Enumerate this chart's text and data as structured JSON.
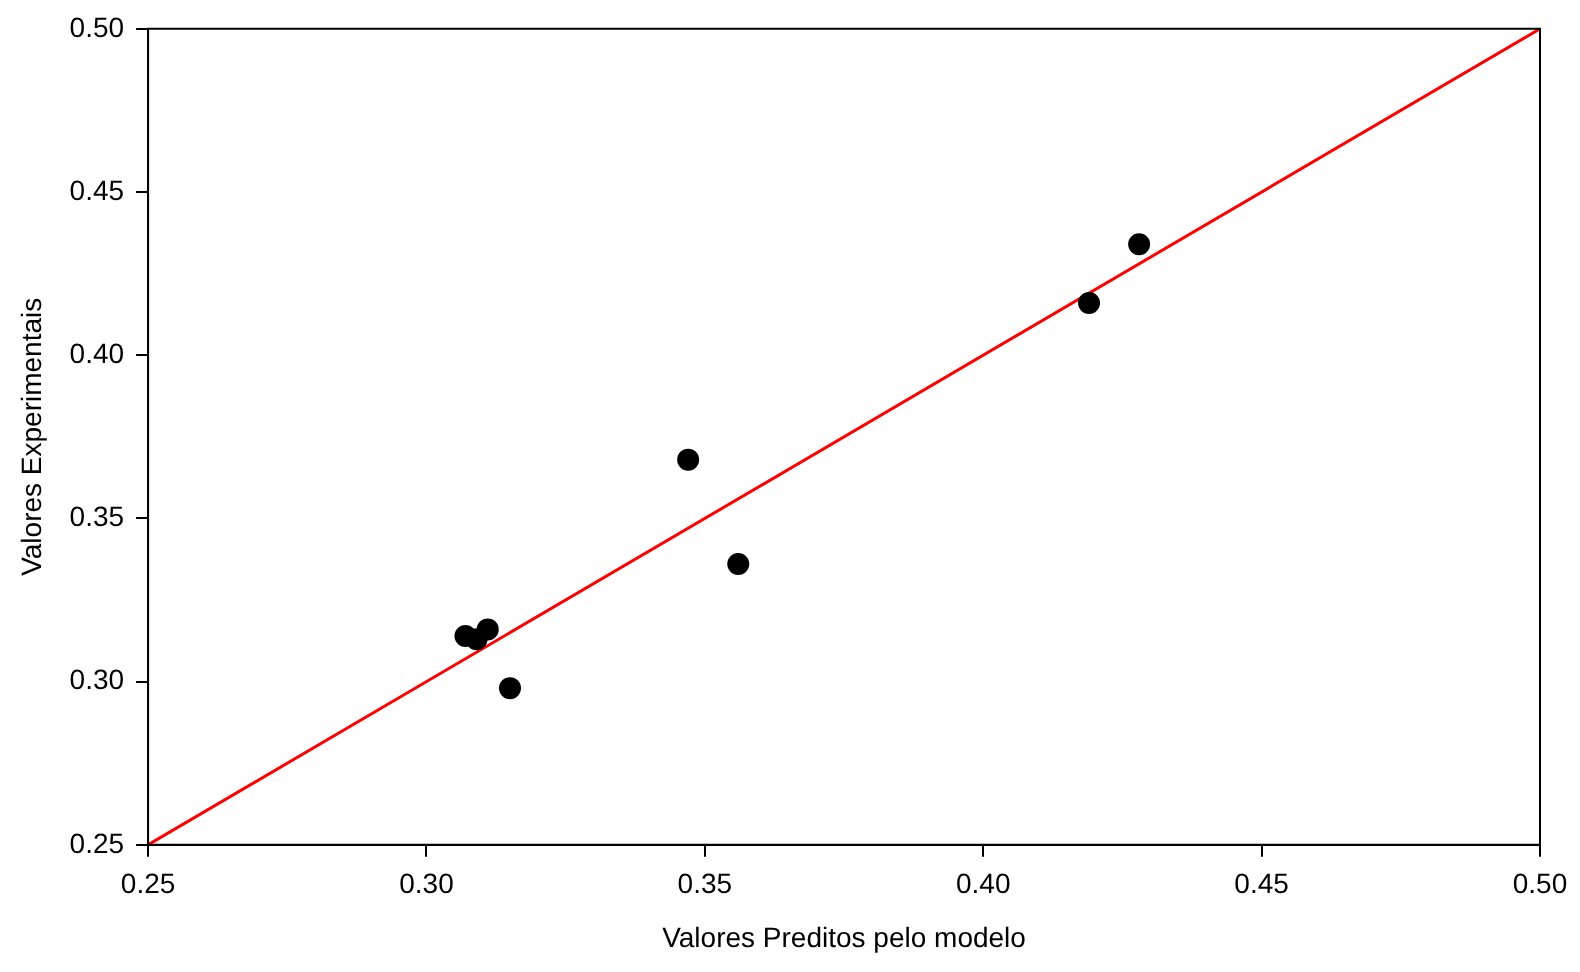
{
  "chart_data": {
    "type": "scatter",
    "xlabel": "Valores Preditos pelo modelo",
    "ylabel": "Valores Experimentais",
    "xlim": [
      0.25,
      0.5
    ],
    "ylim": [
      0.25,
      0.5
    ],
    "xticks": [
      {
        "value": 0.25,
        "label": "0.25"
      },
      {
        "value": 0.3,
        "label": "0.30"
      },
      {
        "value": 0.35,
        "label": "0.35"
      },
      {
        "value": 0.4,
        "label": "0.40"
      },
      {
        "value": 0.45,
        "label": "0.45"
      },
      {
        "value": 0.5,
        "label": "0.50"
      }
    ],
    "yticks": [
      {
        "value": 0.25,
        "label": "0.25"
      },
      {
        "value": 0.3,
        "label": "0.30"
      },
      {
        "value": 0.35,
        "label": "0.35"
      },
      {
        "value": 0.4,
        "label": "0.40"
      },
      {
        "value": 0.45,
        "label": "0.45"
      },
      {
        "value": 0.5,
        "label": "0.50"
      }
    ],
    "grid": false,
    "legend": false,
    "marker": "circle",
    "series": [
      {
        "color": "#000000",
        "x": [
          0.307,
          0.309,
          0.311,
          0.315,
          0.347,
          0.356,
          0.419,
          0.428
        ],
        "values": [
          0.314,
          0.313,
          0.316,
          0.298,
          0.368,
          0.336,
          0.416,
          0.434
        ]
      },
      {
        "type": "line",
        "color": "#ff0000",
        "x": [
          0.25,
          0.5
        ],
        "values": [
          0.25,
          0.5
        ],
        "marker": "none",
        "line_style": "solid"
      }
    ]
  }
}
